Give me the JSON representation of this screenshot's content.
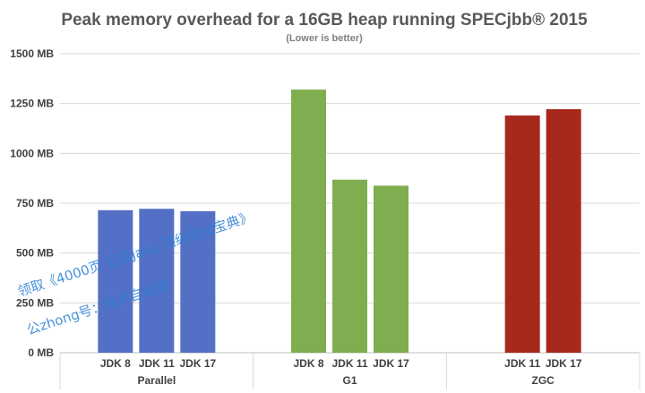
{
  "chart_data": {
    "type": "bar",
    "title": "Peak memory overhead for a 16GB heap running SPECjbb® 2015",
    "subtitle": "(Lower is better)",
    "ylim": [
      0,
      1500
    ],
    "yticks": [
      "0 MB",
      "250 MB",
      "500 MB",
      "750 MB",
      "1000 MB",
      "1250 MB",
      "1500 MB"
    ],
    "ytick_values": [
      0,
      250,
      500,
      750,
      1000,
      1250,
      1500
    ],
    "grid": true,
    "groups": [
      {
        "name": "Parallel",
        "color": "#5470c6",
        "bars": [
          {
            "label": "JDK 8",
            "value": 715
          },
          {
            "label": "JDK 11",
            "value": 722
          },
          {
            "label": "JDK 17",
            "value": 710
          }
        ]
      },
      {
        "name": "G1",
        "color": "#7fad4f",
        "bars": [
          {
            "label": "JDK 8",
            "value": 1320
          },
          {
            "label": "JDK 11",
            "value": 868
          },
          {
            "label": "JDK 17",
            "value": 838
          }
        ]
      },
      {
        "name": "ZGC",
        "color": "#a7291c",
        "bars": [
          {
            "label": "JDK 11",
            "value": 1190
          },
          {
            "label": "JDK 17",
            "value": 1222
          }
        ]
      }
    ]
  },
  "watermark": {
    "line1": "领取《4000页 尼恩Java 顶级面试宝典》",
    "line2": "公zhong号：技术自由圈"
  }
}
